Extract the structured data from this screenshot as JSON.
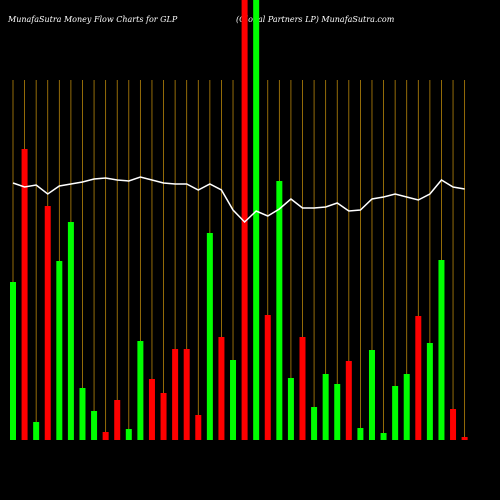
{
  "chart_data": {
    "type": "bar",
    "title": "MunafaSutra  Money Flow  Charts for GLP",
    "subtitle": "(Global Partners LP) MunafaSutra.com",
    "categories": [
      null,
      null,
      null,
      null,
      null,
      null,
      null,
      null,
      null,
      null,
      null,
      null,
      null,
      null,
      null,
      null,
      null,
      null,
      null,
      null,
      null,
      null,
      null,
      null,
      null,
      null,
      null,
      null,
      null,
      null,
      null,
      null,
      null,
      null,
      null,
      null,
      null,
      null,
      null,
      null
    ],
    "series": [
      {
        "values": [
          158,
          291,
          18,
          234,
          179,
          218,
          52,
          29,
          8,
          40,
          11,
          99,
          61,
          47,
          91,
          91,
          25,
          207,
          103,
          80,
          460,
          460,
          125,
          259,
          62,
          103,
          33,
          66,
          56,
          79,
          12,
          90,
          7,
          54,
          66,
          124,
          97,
          180,
          31,
          3
        ],
        "colors": [
          "#00ff00",
          "#ff0000",
          "#00ff00",
          "#ff0000",
          "#00ff00",
          "#00ff00",
          "#00ff00",
          "#00ff00",
          "#ff0000",
          "#ff0000",
          "#00ff00",
          "#00ff00",
          "#ff0000",
          "#ff0000",
          "#ff0000",
          "#ff0000",
          "#ff0000",
          "#00ff00",
          "#ff0000",
          "#00ff00",
          "#ff0000",
          "#00ff00",
          "#ff0000",
          "#00ff00",
          "#00ff00",
          "#ff0000",
          "#00ff00",
          "#00ff00",
          "#00ff00",
          "#ff0000",
          "#00ff00",
          "#00ff00",
          "#00ff00",
          "#00ff00",
          "#00ff00",
          "#ff0000",
          "#00ff00",
          "#00ff00",
          "#ff0000",
          "#ff0000"
        ]
      },
      {
        "type": "line",
        "color": "#ffffff",
        "values": [
          257,
          253,
          255,
          246,
          254,
          256,
          258,
          261,
          262,
          260,
          259,
          263,
          260,
          257,
          256,
          256,
          250,
          256,
          250,
          230,
          218,
          229,
          224,
          231,
          241,
          232,
          232,
          233,
          237,
          229,
          230,
          241,
          243,
          246,
          243,
          240,
          246,
          260,
          253,
          251
        ]
      }
    ],
    "ylim": [
      0,
      440
    ],
    "grid_color": "#b8860b"
  }
}
